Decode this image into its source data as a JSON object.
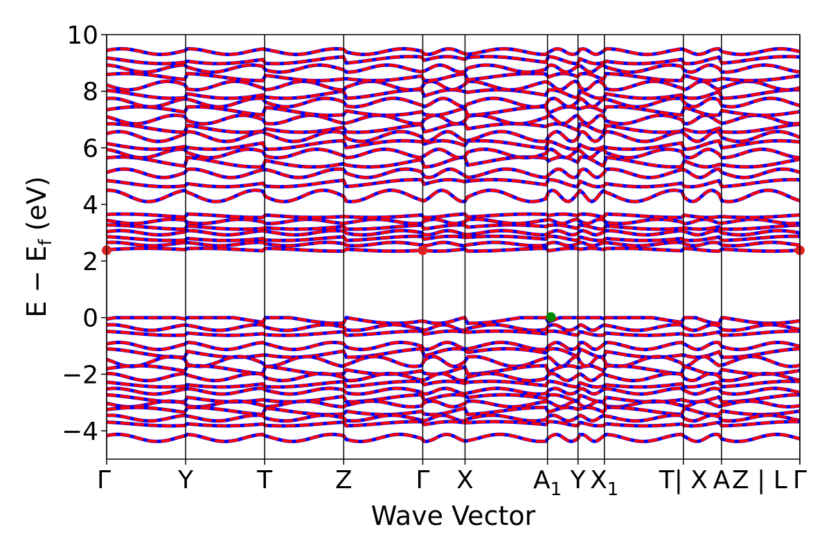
{
  "chart_data": {
    "type": "line",
    "xlabel": "Wave Vector",
    "ylabel": {
      "main": "E − E",
      "subscript": "f",
      "unit": " (eV)"
    },
    "ylim": [
      -5,
      10
    ],
    "yticks": [
      {
        "value": -4,
        "label": "−4"
      },
      {
        "value": -2,
        "label": "−2"
      },
      {
        "value": 0,
        "label": "0"
      },
      {
        "value": 2,
        "label": "2"
      },
      {
        "value": 4,
        "label": "4"
      },
      {
        "value": 6,
        "label": "6"
      },
      {
        "value": 8,
        "label": "8"
      },
      {
        "value": 10,
        "label": "10"
      }
    ],
    "xlim": [
      0,
      1
    ],
    "path_ticks": [
      {
        "pos": 0.0,
        "label": "Γ"
      },
      {
        "pos": 0.114,
        "label": "Y"
      },
      {
        "pos": 0.228,
        "label": "T"
      },
      {
        "pos": 0.342,
        "label": "Z"
      },
      {
        "pos": 0.456,
        "label": "Γ"
      },
      {
        "pos": 0.517,
        "label": "X"
      },
      {
        "pos": 0.636,
        "label": "A",
        "subscript": "1"
      },
      {
        "pos": 0.68,
        "label": "Y"
      },
      {
        "pos": 0.718,
        "label": "X",
        "subscript": "1"
      },
      {
        "pos": 0.832,
        "label": "T| X"
      },
      {
        "pos": 0.887,
        "label": "A"
      },
      {
        "pos": 1.0,
        "label": "Z | L"
      },
      {
        "pos": 1.0,
        "label": "Γ"
      }
    ],
    "vlines": [
      0.0,
      0.114,
      0.228,
      0.342,
      0.456,
      0.517,
      0.636,
      0.68,
      0.718,
      0.832,
      0.887,
      1.0
    ],
    "series_colors": {
      "spin_up": "#ff0000",
      "spin_down": "#0000ff"
    },
    "markers": [
      {
        "x": 0.0,
        "y": 2.38,
        "color": "#dd2222",
        "kind": "CBM"
      },
      {
        "x": 0.456,
        "y": 2.38,
        "color": "#dd2222",
        "kind": "CBM"
      },
      {
        "x": 1.0,
        "y": 2.38,
        "color": "#dd2222",
        "kind": "CBM"
      },
      {
        "x": 0.641,
        "y": 0.02,
        "color": "#008800",
        "kind": "VBM"
      }
    ],
    "bands": {
      "valence": [
        {
          "base": -0.05,
          "amp": 0.3,
          "phase": 0.0
        },
        {
          "base": -0.35,
          "amp": 0.2,
          "phase": 1.2
        },
        {
          "base": -0.55,
          "amp": 0.15,
          "phase": 2.1
        },
        {
          "base": -1.0,
          "amp": 0.25,
          "phase": 0.6
        },
        {
          "base": -1.25,
          "amp": 0.3,
          "phase": 1.8
        },
        {
          "base": -1.55,
          "amp": 0.35,
          "phase": 2.7
        },
        {
          "base": -1.85,
          "amp": 0.3,
          "phase": 0.3
        },
        {
          "base": -2.1,
          "amp": 0.25,
          "phase": 1.5
        },
        {
          "base": -2.35,
          "amp": 0.2,
          "phase": 2.4
        },
        {
          "base": -2.6,
          "amp": 0.2,
          "phase": 0.9
        },
        {
          "base": -2.85,
          "amp": 0.25,
          "phase": 1.9
        },
        {
          "base": -3.05,
          "amp": 0.2,
          "phase": 2.9
        },
        {
          "base": -3.3,
          "amp": 0.25,
          "phase": 0.4
        },
        {
          "base": -3.55,
          "amp": 0.2,
          "phase": 1.3
        },
        {
          "base": -3.75,
          "amp": 0.15,
          "phase": 2.2
        },
        {
          "base": -4.25,
          "amp": 0.25,
          "phase": 0.7
        }
      ],
      "conduction": [
        {
          "base": 2.4,
          "amp": 0.1,
          "phase": 0.0
        },
        {
          "base": 2.6,
          "amp": 0.12,
          "phase": 1.1
        },
        {
          "base": 2.8,
          "amp": 0.15,
          "phase": 2.2
        },
        {
          "base": 3.0,
          "amp": 0.15,
          "phase": 0.5
        },
        {
          "base": 3.2,
          "amp": 0.15,
          "phase": 1.6
        },
        {
          "base": 3.4,
          "amp": 0.15,
          "phase": 2.6
        },
        {
          "base": 3.6,
          "amp": 0.12,
          "phase": 0.9
        },
        {
          "base": 4.3,
          "amp": 0.4,
          "phase": 1.4
        },
        {
          "base": 4.75,
          "amp": 0.25,
          "phase": 2.3
        },
        {
          "base": 5.1,
          "amp": 0.3,
          "phase": 0.2
        },
        {
          "base": 5.5,
          "amp": 0.35,
          "phase": 1.0
        },
        {
          "base": 5.8,
          "amp": 0.3,
          "phase": 1.9
        },
        {
          "base": 6.1,
          "amp": 0.3,
          "phase": 2.8
        },
        {
          "base": 6.4,
          "amp": 0.35,
          "phase": 0.6
        },
        {
          "base": 6.7,
          "amp": 0.3,
          "phase": 1.5
        },
        {
          "base": 7.0,
          "amp": 0.3,
          "phase": 2.4
        },
        {
          "base": 7.3,
          "amp": 0.3,
          "phase": 0.3
        },
        {
          "base": 7.6,
          "amp": 0.3,
          "phase": 1.2
        },
        {
          "base": 7.9,
          "amp": 0.3,
          "phase": 2.1
        },
        {
          "base": 8.2,
          "amp": 0.3,
          "phase": 3.0
        },
        {
          "base": 8.5,
          "amp": 0.25,
          "phase": 0.8
        },
        {
          "base": 8.8,
          "amp": 0.25,
          "phase": 1.7
        },
        {
          "base": 9.1,
          "amp": 0.25,
          "phase": 2.5
        },
        {
          "base": 9.4,
          "amp": 0.2,
          "phase": 0.4
        }
      ]
    }
  }
}
